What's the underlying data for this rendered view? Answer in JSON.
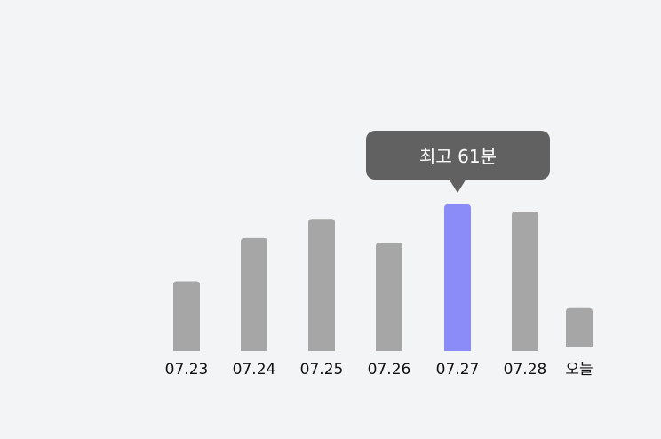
{
  "chart_data": {
    "type": "bar",
    "categories": [
      "07.23",
      "07.24",
      "07.25",
      "07.26",
      "07.27",
      "07.28",
      "오늘"
    ],
    "values": [
      29,
      47,
      55,
      45,
      61,
      58,
      16
    ],
    "highlight_index": 4,
    "title": "",
    "xlabel": "",
    "ylabel": "",
    "ylim": [
      0,
      61
    ],
    "grid": false,
    "legend": "none",
    "colors": {
      "bar": "#a6a6a6",
      "highlight": "#8b8cf8",
      "tooltip_bg": "#616161",
      "tooltip_text": "#ffffff",
      "label": "#111111",
      "background": "#f3f4f6"
    },
    "tooltip": {
      "label": "최고 61분"
    }
  }
}
